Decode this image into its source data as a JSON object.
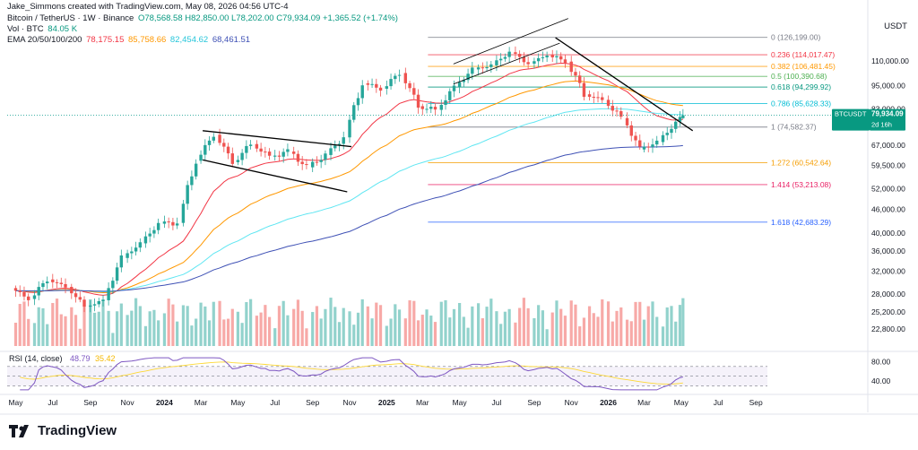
{
  "header": {
    "credit": "Jake_Simmons created with TradingView.com, May 08, 2026 04:56 UTC-4",
    "symbol": "Bitcoin / TetherUS · 1W · Binance",
    "ohlc": "O78,568.58  H82,850.00  L78,202.00  C79,934.09  +1,365.52 (+1.74%)",
    "vol_label": "Vol · BTC",
    "vol_value": "84.05 K",
    "ema_label": "EMA 20/50/100/200",
    "ema_values": [
      "78,175.15",
      "85,758.66",
      "82,454.62",
      "68,461.51"
    ],
    "quote_currency": "USDT"
  },
  "colors": {
    "up": "#26a69a",
    "down": "#ef5350",
    "ema20": "#f23645",
    "ema50": "#ff9800",
    "ema100": "#5fe6f2",
    "ema200": "#3f51b5",
    "rsi": "#7e57c2",
    "rsi_ma": "#fdd835"
  },
  "price_badge": {
    "symbol": "BTCUSDT",
    "price": "79,934.09",
    "countdown": "2d 16h"
  },
  "rsi": {
    "label": "RSI (14, close)",
    "value": "48.79",
    "ma_value": "35.42",
    "ticks": [
      "80.00",
      "40.00"
    ]
  },
  "chart_data": {
    "type": "candlestick",
    "symbol": "BTCUSDT",
    "timeframe": "1W",
    "yscale": "log",
    "ylim": [
      20000,
      140000
    ],
    "y_ticks": [
      "110,000.00",
      "95,000.00",
      "83,000.00",
      "76,000.00",
      "67,000.00",
      "59,500.00",
      "52,000.00",
      "46,000.00",
      "40,000.00",
      "36,000.00",
      "32,000.00",
      "28,000.00",
      "25,200.00",
      "22,800.00"
    ],
    "y_tick_values": [
      110000,
      95000,
      83000,
      76000,
      67000,
      59500,
      52000,
      46000,
      40000,
      36000,
      32000,
      28000,
      25200,
      22800
    ],
    "x_ticks": [
      "May",
      "Jul",
      "Sep",
      "Nov",
      "2024",
      "Mar",
      "May",
      "Jul",
      "Sep",
      "Nov",
      "2025",
      "Mar",
      "May",
      "Jul",
      "Sep",
      "Nov",
      "2026",
      "Mar",
      "May",
      "Jul",
      "Sep"
    ],
    "x_tick_dates": [
      "2023-05-01",
      "2023-07-01",
      "2023-09-01",
      "2023-11-01",
      "2024-01-01",
      "2024-03-01",
      "2024-05-01",
      "2024-07-01",
      "2024-09-01",
      "2024-11-01",
      "2025-01-01",
      "2025-03-01",
      "2025-05-01",
      "2025-07-01",
      "2025-09-01",
      "2025-11-01",
      "2026-01-01",
      "2026-03-01",
      "2026-05-01",
      "2026-07-01",
      "2026-09-01"
    ],
    "fib_levels": [
      {
        "ratio": "0",
        "label": "0 (126,199.00)",
        "price": 126199,
        "color": "#787b86"
      },
      {
        "ratio": "0.236",
        "label": "0.236 (114,017.47)",
        "price": 114017.47,
        "color": "#f23645"
      },
      {
        "ratio": "0.382",
        "label": "0.382 (106,481.45)",
        "price": 106481.45,
        "color": "#ff9800"
      },
      {
        "ratio": "0.5",
        "label": "0.5 (100,390.68)",
        "price": 100390.68,
        "color": "#4caf50"
      },
      {
        "ratio": "0.618",
        "label": "0.618 (94,299.92)",
        "price": 94299.92,
        "color": "#089981"
      },
      {
        "ratio": "0.786",
        "label": "0.786 (85,628.33)",
        "price": 85628.33,
        "color": "#00bcd4"
      },
      {
        "ratio": "1",
        "label": "1 (74,582.37)",
        "price": 74582.37,
        "color": "#787b86"
      },
      {
        "ratio": "1.272",
        "label": "1.272 (60,542.64)",
        "price": 60542.64,
        "color": "#f59d00"
      },
      {
        "ratio": "1.414",
        "label": "1.414 (53,213.08)",
        "price": 53213.08,
        "color": "#e91e63"
      },
      {
        "ratio": "1.618",
        "label": "1.618 (42,683.29)",
        "price": 42683.29,
        "color": "#2962ff"
      }
    ],
    "last_price": 79934.09,
    "candles_approx": [
      {
        "date": "2023-05-01",
        "o": 29000,
        "h": 30000,
        "l": 26500,
        "c": 27200
      },
      {
        "date": "2023-06-01",
        "o": 27200,
        "h": 31400,
        "l": 24800,
        "c": 30500
      },
      {
        "date": "2023-07-01",
        "o": 30500,
        "h": 31800,
        "l": 28900,
        "c": 29200
      },
      {
        "date": "2023-08-01",
        "o": 29200,
        "h": 30200,
        "l": 25200,
        "c": 26000
      },
      {
        "date": "2023-09-01",
        "o": 26000,
        "h": 27400,
        "l": 24900,
        "c": 27000
      },
      {
        "date": "2023-10-01",
        "o": 27000,
        "h": 35200,
        "l": 26500,
        "c": 34600
      },
      {
        "date": "2023-11-01",
        "o": 34600,
        "h": 38500,
        "l": 34000,
        "c": 37700
      },
      {
        "date": "2023-12-01",
        "o": 37700,
        "h": 44700,
        "l": 37600,
        "c": 42300
      },
      {
        "date": "2024-01-01",
        "o": 42300,
        "h": 48900,
        "l": 38500,
        "c": 42500
      },
      {
        "date": "2024-02-01",
        "o": 42500,
        "h": 64000,
        "l": 41800,
        "c": 61200
      },
      {
        "date": "2024-03-01",
        "o": 61200,
        "h": 73800,
        "l": 59300,
        "c": 71300
      },
      {
        "date": "2024-04-01",
        "o": 71300,
        "h": 72800,
        "l": 59600,
        "c": 60700
      },
      {
        "date": "2024-05-01",
        "o": 60700,
        "h": 72000,
        "l": 56600,
        "c": 67500
      },
      {
        "date": "2024-06-01",
        "o": 67500,
        "h": 71900,
        "l": 58400,
        "c": 62700
      },
      {
        "date": "2024-07-01",
        "o": 62700,
        "h": 70000,
        "l": 53500,
        "c": 64600
      },
      {
        "date": "2024-08-01",
        "o": 64600,
        "h": 65600,
        "l": 49000,
        "c": 58900
      },
      {
        "date": "2024-09-01",
        "o": 58900,
        "h": 66500,
        "l": 52500,
        "c": 63300
      },
      {
        "date": "2024-10-01",
        "o": 63300,
        "h": 73600,
        "l": 58900,
        "c": 70200
      },
      {
        "date": "2024-11-01",
        "o": 70200,
        "h": 99800,
        "l": 66800,
        "c": 96400
      },
      {
        "date": "2024-12-01",
        "o": 96400,
        "h": 108300,
        "l": 90500,
        "c": 93400
      },
      {
        "date": "2025-01-01",
        "o": 93400,
        "h": 109600,
        "l": 89200,
        "c": 102400
      },
      {
        "date": "2025-02-01",
        "o": 102400,
        "h": 102500,
        "l": 78300,
        "c": 84300
      },
      {
        "date": "2025-03-01",
        "o": 84300,
        "h": 95000,
        "l": 76600,
        "c": 82500
      },
      {
        "date": "2025-04-01",
        "o": 82500,
        "h": 95700,
        "l": 74500,
        "c": 94200
      },
      {
        "date": "2025-05-01",
        "o": 94200,
        "h": 111900,
        "l": 93300,
        "c": 104600
      },
      {
        "date": "2025-06-01",
        "o": 104600,
        "h": 110500,
        "l": 98200,
        "c": 107100
      },
      {
        "date": "2025-07-01",
        "o": 107100,
        "h": 123200,
        "l": 105200,
        "c": 115700
      },
      {
        "date": "2025-08-01",
        "o": 115700,
        "h": 124500,
        "l": 107300,
        "c": 108200
      },
      {
        "date": "2025-09-01",
        "o": 108200,
        "h": 117900,
        "l": 107200,
        "c": 114000
      },
      {
        "date": "2025-10-01",
        "o": 114000,
        "h": 126199,
        "l": 103500,
        "c": 109500
      },
      {
        "date": "2025-11-01",
        "o": 109500,
        "h": 110600,
        "l": 80600,
        "c": 90400
      },
      {
        "date": "2025-12-01",
        "o": 90400,
        "h": 94600,
        "l": 84400,
        "c": 87500
      },
      {
        "date": "2026-01-01",
        "o": 87500,
        "h": 97900,
        "l": 76200,
        "c": 78600
      },
      {
        "date": "2026-02-01",
        "o": 78600,
        "h": 79200,
        "l": 60000,
        "c": 65400
      },
      {
        "date": "2026-03-01",
        "o": 65400,
        "h": 72500,
        "l": 62800,
        "c": 68300
      },
      {
        "date": "2026-04-01",
        "o": 68300,
        "h": 79700,
        "l": 66500,
        "c": 78568.58
      },
      {
        "date": "2026-05-04",
        "o": 78568.58,
        "h": 82850,
        "l": 78202,
        "c": 79934.09
      }
    ]
  }
}
